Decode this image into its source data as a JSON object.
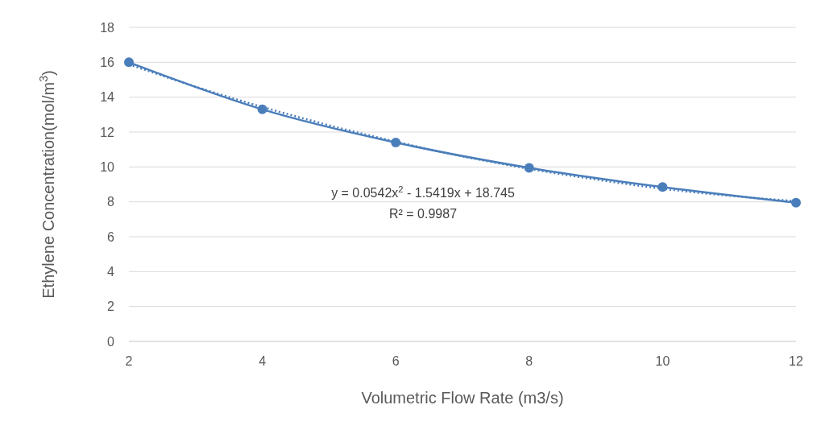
{
  "chart_data": {
    "type": "line",
    "xlabel": "Volumetric Flow Rate (m3/s)",
    "ylabel": "Ethylene Concentration(mol/m$^{3}$)",
    "series": [
      {
        "color": "#4a7ebb",
        "marker": "circle",
        "line_style": "solid",
        "x": [
          2,
          4,
          6,
          8,
          10,
          12
        ],
        "values": [
          16,
          13.3,
          11.4,
          9.95,
          8.85,
          7.95
        ]
      },
      {
        "type": "line",
        "color": "#4a7ebb",
        "marker": "none",
        "line_style": "dotted",
        "x": [
          2,
          3,
          4,
          5,
          6,
          7,
          8,
          9,
          10,
          11,
          12
        ],
        "values": [
          15.88,
          14.6,
          13.44,
          12.39,
          11.45,
          10.61,
          9.89,
          9.28,
          8.75,
          8.35,
          8.04
        ]
      }
    ],
    "xlim": [
      2,
      12
    ],
    "xticks": [
      2,
      4,
      6,
      8,
      10,
      12
    ],
    "ylim": [
      0,
      18
    ],
    "yticks": [
      0,
      2,
      4,
      6,
      8,
      10,
      12,
      14,
      16,
      18
    ],
    "grid": "y",
    "annotations": [
      "y = 0.0542x$^{2}$ - 1.5419x + 18.745",
      "R² = 0.9987"
    ]
  }
}
